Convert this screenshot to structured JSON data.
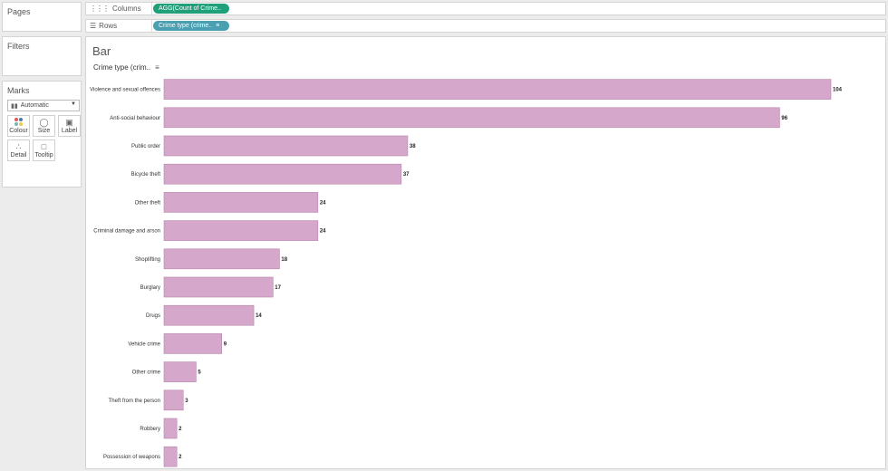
{
  "side": {
    "pages_title": "Pages",
    "filters_title": "Filters",
    "marks_title": "Marks",
    "marks_type": "Automatic",
    "buttons": {
      "colour": "Colour",
      "size": "Size",
      "label": "Label",
      "detail": "Detail",
      "tooltip": "Tooltip"
    }
  },
  "shelves": {
    "columns_label": "Columns",
    "columns_pill": "AGG(Count of Crime..",
    "rows_label": "Rows",
    "rows_pill": "Crime type (crime.."
  },
  "sheet": {
    "title": "Bar",
    "row_header": "Crime type (crim.."
  },
  "colors": {
    "bar_fill": "#d5a8cb",
    "columns_pill": "#1fa07a",
    "rows_pill": "#4a9fb0"
  },
  "chart_data": {
    "type": "bar",
    "orientation": "horizontal",
    "categories": [
      "Violence and sexual offences",
      "Anti-social behaviour",
      "Public order",
      "Bicycle theft",
      "Other theft",
      "Criminal damage and arson",
      "Shoplifting",
      "Burglary",
      "Drugs",
      "Vehicle crime",
      "Other crime",
      "Theft from the person",
      "Robbery",
      "Possession of weapons"
    ],
    "values": [
      104,
      96,
      38,
      37,
      24,
      24,
      18,
      17,
      14,
      9,
      5,
      3,
      2,
      2
    ],
    "xlim": [
      0,
      104
    ],
    "grid": false,
    "data_labels": true
  }
}
